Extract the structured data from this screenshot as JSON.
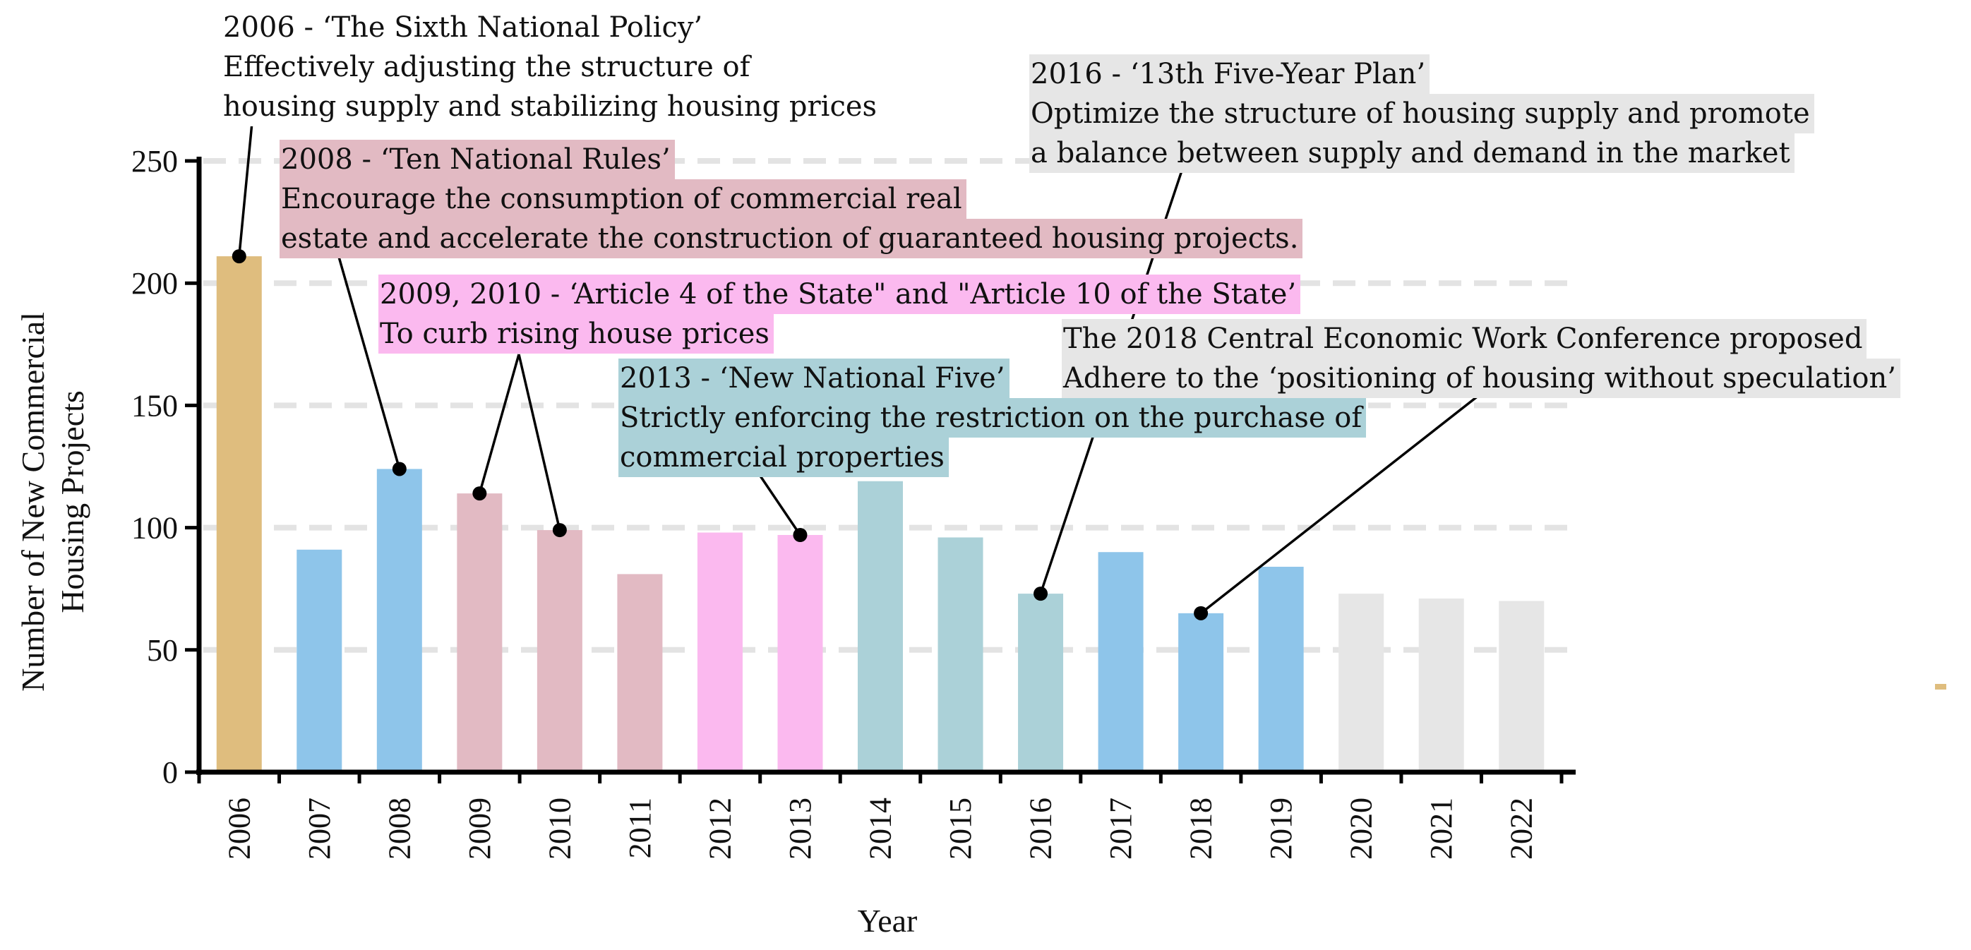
{
  "chart_data": {
    "type": "bar",
    "title": "",
    "xlabel": "Year",
    "ylabel": [
      "Number of New Commercial",
      "Housing Projects"
    ],
    "ylim": [
      0,
      250
    ],
    "yticks": [
      0,
      50,
      100,
      150,
      200,
      250
    ],
    "grid": "horizontal dashed",
    "categories": [
      "2006",
      "2007",
      "2008",
      "2009",
      "2010",
      "2011",
      "2012",
      "2013",
      "2014",
      "2015",
      "2016",
      "2017",
      "2018",
      "2019",
      "2020",
      "2021",
      "2022"
    ],
    "values": [
      211,
      91,
      124,
      114,
      99,
      81,
      98,
      97,
      119,
      96,
      73,
      90,
      65,
      84,
      73,
      71,
      70
    ],
    "bar_colors": [
      "#dfbd7e",
      "#8ec5ea",
      "#8ec5ea",
      "#e2bac3",
      "#e2bac3",
      "#e2bac3",
      "#fbb9ef",
      "#fbb9ef",
      "#abd1d8",
      "#abd1d8",
      "#abd1d8",
      "#8ec5ea",
      "#8ec5ea",
      "#8ec5ea",
      "#e6e6e6",
      "#e6e6e6",
      "#e6e6e6"
    ],
    "annotations": [
      {
        "title": "2006 - ‘The Sixth National Policy’",
        "lines": [
          "Effectively adjusting the structure of",
          "housing supply and stabilizing housing prices"
        ],
        "background": "#ffffff",
        "points": [
          {
            "category": "2006",
            "value": 211
          }
        ]
      },
      {
        "title": "2008 - ‘Ten National Rules’",
        "lines": [
          "Encourage the consumption of commercial real",
          "estate and accelerate the construction of guaranteed housing projects."
        ],
        "background": "#e2bac3",
        "points": [
          {
            "category": "2008",
            "value": 124
          }
        ]
      },
      {
        "title": "2009, 2010 - ‘Article 4 of the State\" and \"Article 10 of the State’",
        "lines": [
          "To curb rising house prices"
        ],
        "background": "#fbb9ef",
        "points": [
          {
            "category": "2009",
            "value": 114
          },
          {
            "category": "2010",
            "value": 99
          }
        ]
      },
      {
        "title": "2013 - ‘New National Five’",
        "lines": [
          "Strictly enforcing the restriction on the purchase of",
          "commercial properties"
        ],
        "background": "#abd1d8",
        "points": [
          {
            "category": "2013",
            "value": 97
          }
        ]
      },
      {
        "title": "2016 - ‘13th Five-Year Plan’",
        "lines": [
          "Optimize the structure of housing supply and promote",
          "a balance between supply and demand in the market"
        ],
        "background": "#e6e6e6",
        "points": [
          {
            "category": "2016",
            "value": 73
          }
        ]
      },
      {
        "title": "The 2018 Central Economic Work Conference proposed",
        "lines": [
          "Adhere to the ‘positioning of housing without speculation’"
        ],
        "background": "#e6e6e6",
        "points": [
          {
            "category": "2018",
            "value": 65
          }
        ]
      }
    ]
  }
}
